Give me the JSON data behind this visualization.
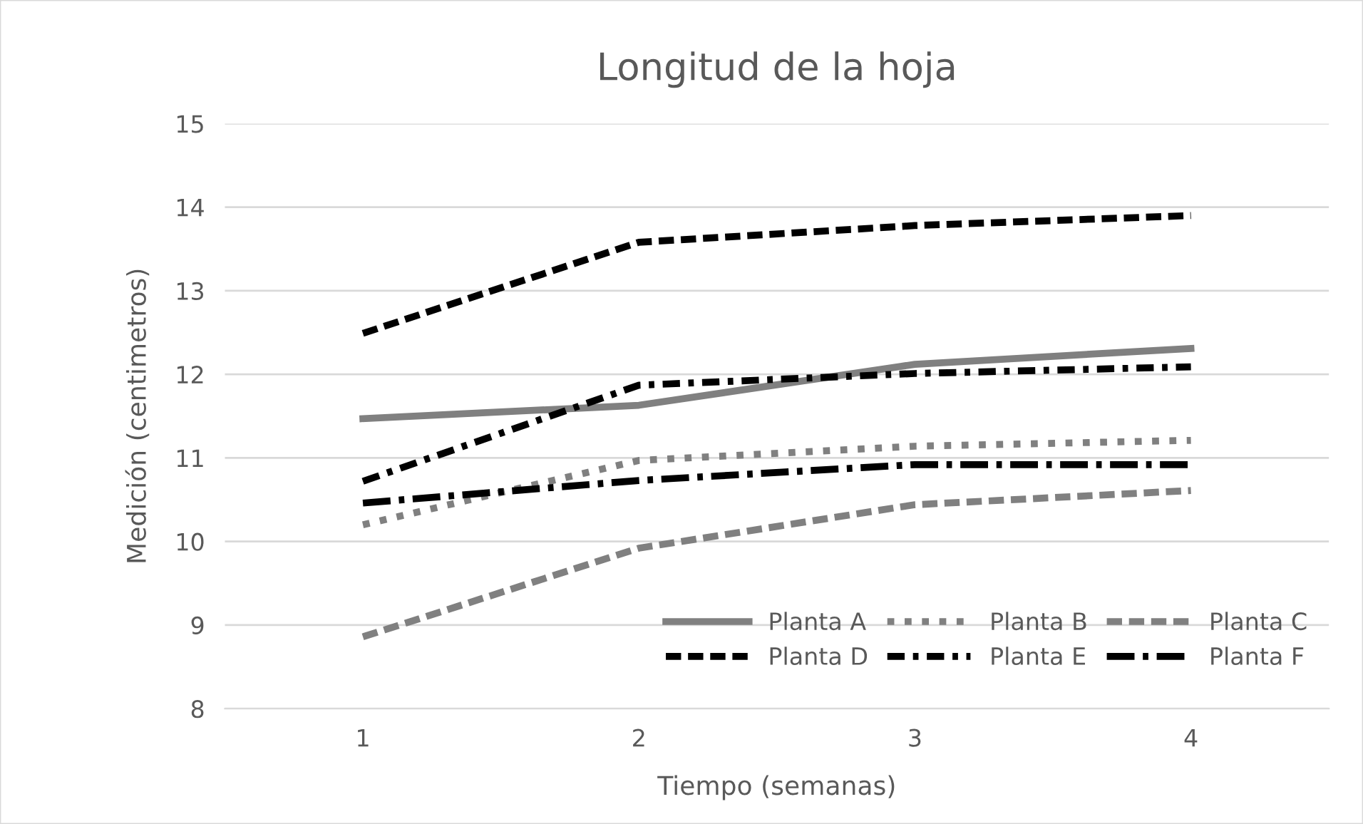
{
  "chart_data": {
    "type": "line",
    "title": "Longitud de la hoja",
    "xlabel": "Tiempo (semanas)",
    "ylabel": "Medición (centimetros)",
    "categories": [
      "1",
      "2",
      "3",
      "4"
    ],
    "series": [
      {
        "name": "Planta A",
        "color": "#808080",
        "line_style": "solid",
        "values": [
          11.47,
          11.63,
          12.12,
          12.31
        ]
      },
      {
        "name": "Planta B",
        "color": "#808080",
        "line_style": "dotted",
        "values": [
          10.2,
          10.97,
          11.14,
          11.21
        ]
      },
      {
        "name": "Planta C",
        "color": "#808080",
        "line_style": "dashed",
        "values": [
          8.86,
          9.92,
          10.44,
          10.61
        ]
      },
      {
        "name": "Planta D",
        "color": "#000000",
        "line_style": "dashed",
        "values": [
          12.49,
          13.58,
          13.78,
          13.9
        ]
      },
      {
        "name": "Planta E",
        "color": "#000000",
        "line_style": "dashdot",
        "values": [
          10.72,
          11.87,
          12.01,
          12.09
        ]
      },
      {
        "name": "Planta F",
        "color": "#000000",
        "line_style": "longdashdot",
        "values": [
          10.46,
          10.73,
          10.92,
          10.92
        ]
      }
    ],
    "ylim": [
      8,
      15
    ],
    "yticks": [
      8,
      9,
      10,
      11,
      12,
      13,
      14,
      15
    ],
    "grid": "y",
    "legend": "bottom right",
    "marker": "none"
  }
}
